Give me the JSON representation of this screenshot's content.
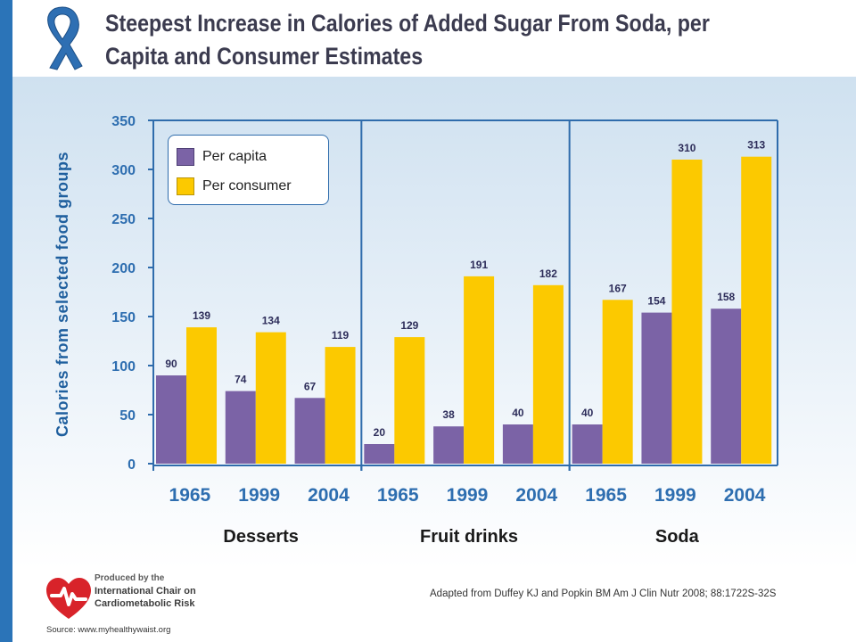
{
  "header": {
    "title_line1": "Steepest Increase in Calories of Added Sugar From Soda, per",
    "title_line2": "Capita and Consumer Estimates"
  },
  "colors": {
    "per_capita": "#7b63a6",
    "per_consumer": "#fcc900",
    "axis": "#2f6cac",
    "stripe": "#2b74b8"
  },
  "icons": [
    "awareness-ribbon-icon",
    "heart-logo-icon"
  ],
  "chart_data": {
    "type": "bar",
    "title": "Steepest Increase in Calories of Added Sugar From Soda, per Capita and Consumer Estimates",
    "ylabel": "Calories from selected food groups",
    "xlabel": "",
    "ylim": [
      0,
      350
    ],
    "yticks": [
      0,
      50,
      100,
      150,
      200,
      250,
      300,
      350
    ],
    "grid": false,
    "legend_position": "top-left",
    "groups": [
      {
        "name": "Desserts",
        "years": [
          "1965",
          "1999",
          "2004"
        ],
        "per_capita": [
          90,
          74,
          67
        ],
        "per_consumer": [
          139,
          134,
          119
        ]
      },
      {
        "name": "Fruit drinks",
        "years": [
          "1965",
          "1999",
          "2004"
        ],
        "per_capita": [
          20,
          38,
          40
        ],
        "per_consumer": [
          129,
          191,
          182
        ]
      },
      {
        "name": "Soda",
        "years": [
          "1965",
          "1999",
          "2004"
        ],
        "per_capita": [
          40,
          154,
          158
        ],
        "per_consumer": [
          167,
          310,
          313
        ]
      }
    ],
    "series": [
      {
        "name": "Per capita",
        "key": "per_capita"
      },
      {
        "name": "Per consumer",
        "key": "per_consumer"
      }
    ]
  },
  "legend": {
    "per_capita": "Per capita",
    "per_consumer": "Per consumer"
  },
  "footer": {
    "logo_line1": "Produced by the",
    "logo_line2": "International Chair on",
    "logo_line3": "Cardiometabolic Risk",
    "citation": "Adapted from Duffey KJ and Popkin BM Am J Clin Nutr 2008;   88:1722S-32S",
    "source": "Source: www.myhealthywaist.org"
  }
}
